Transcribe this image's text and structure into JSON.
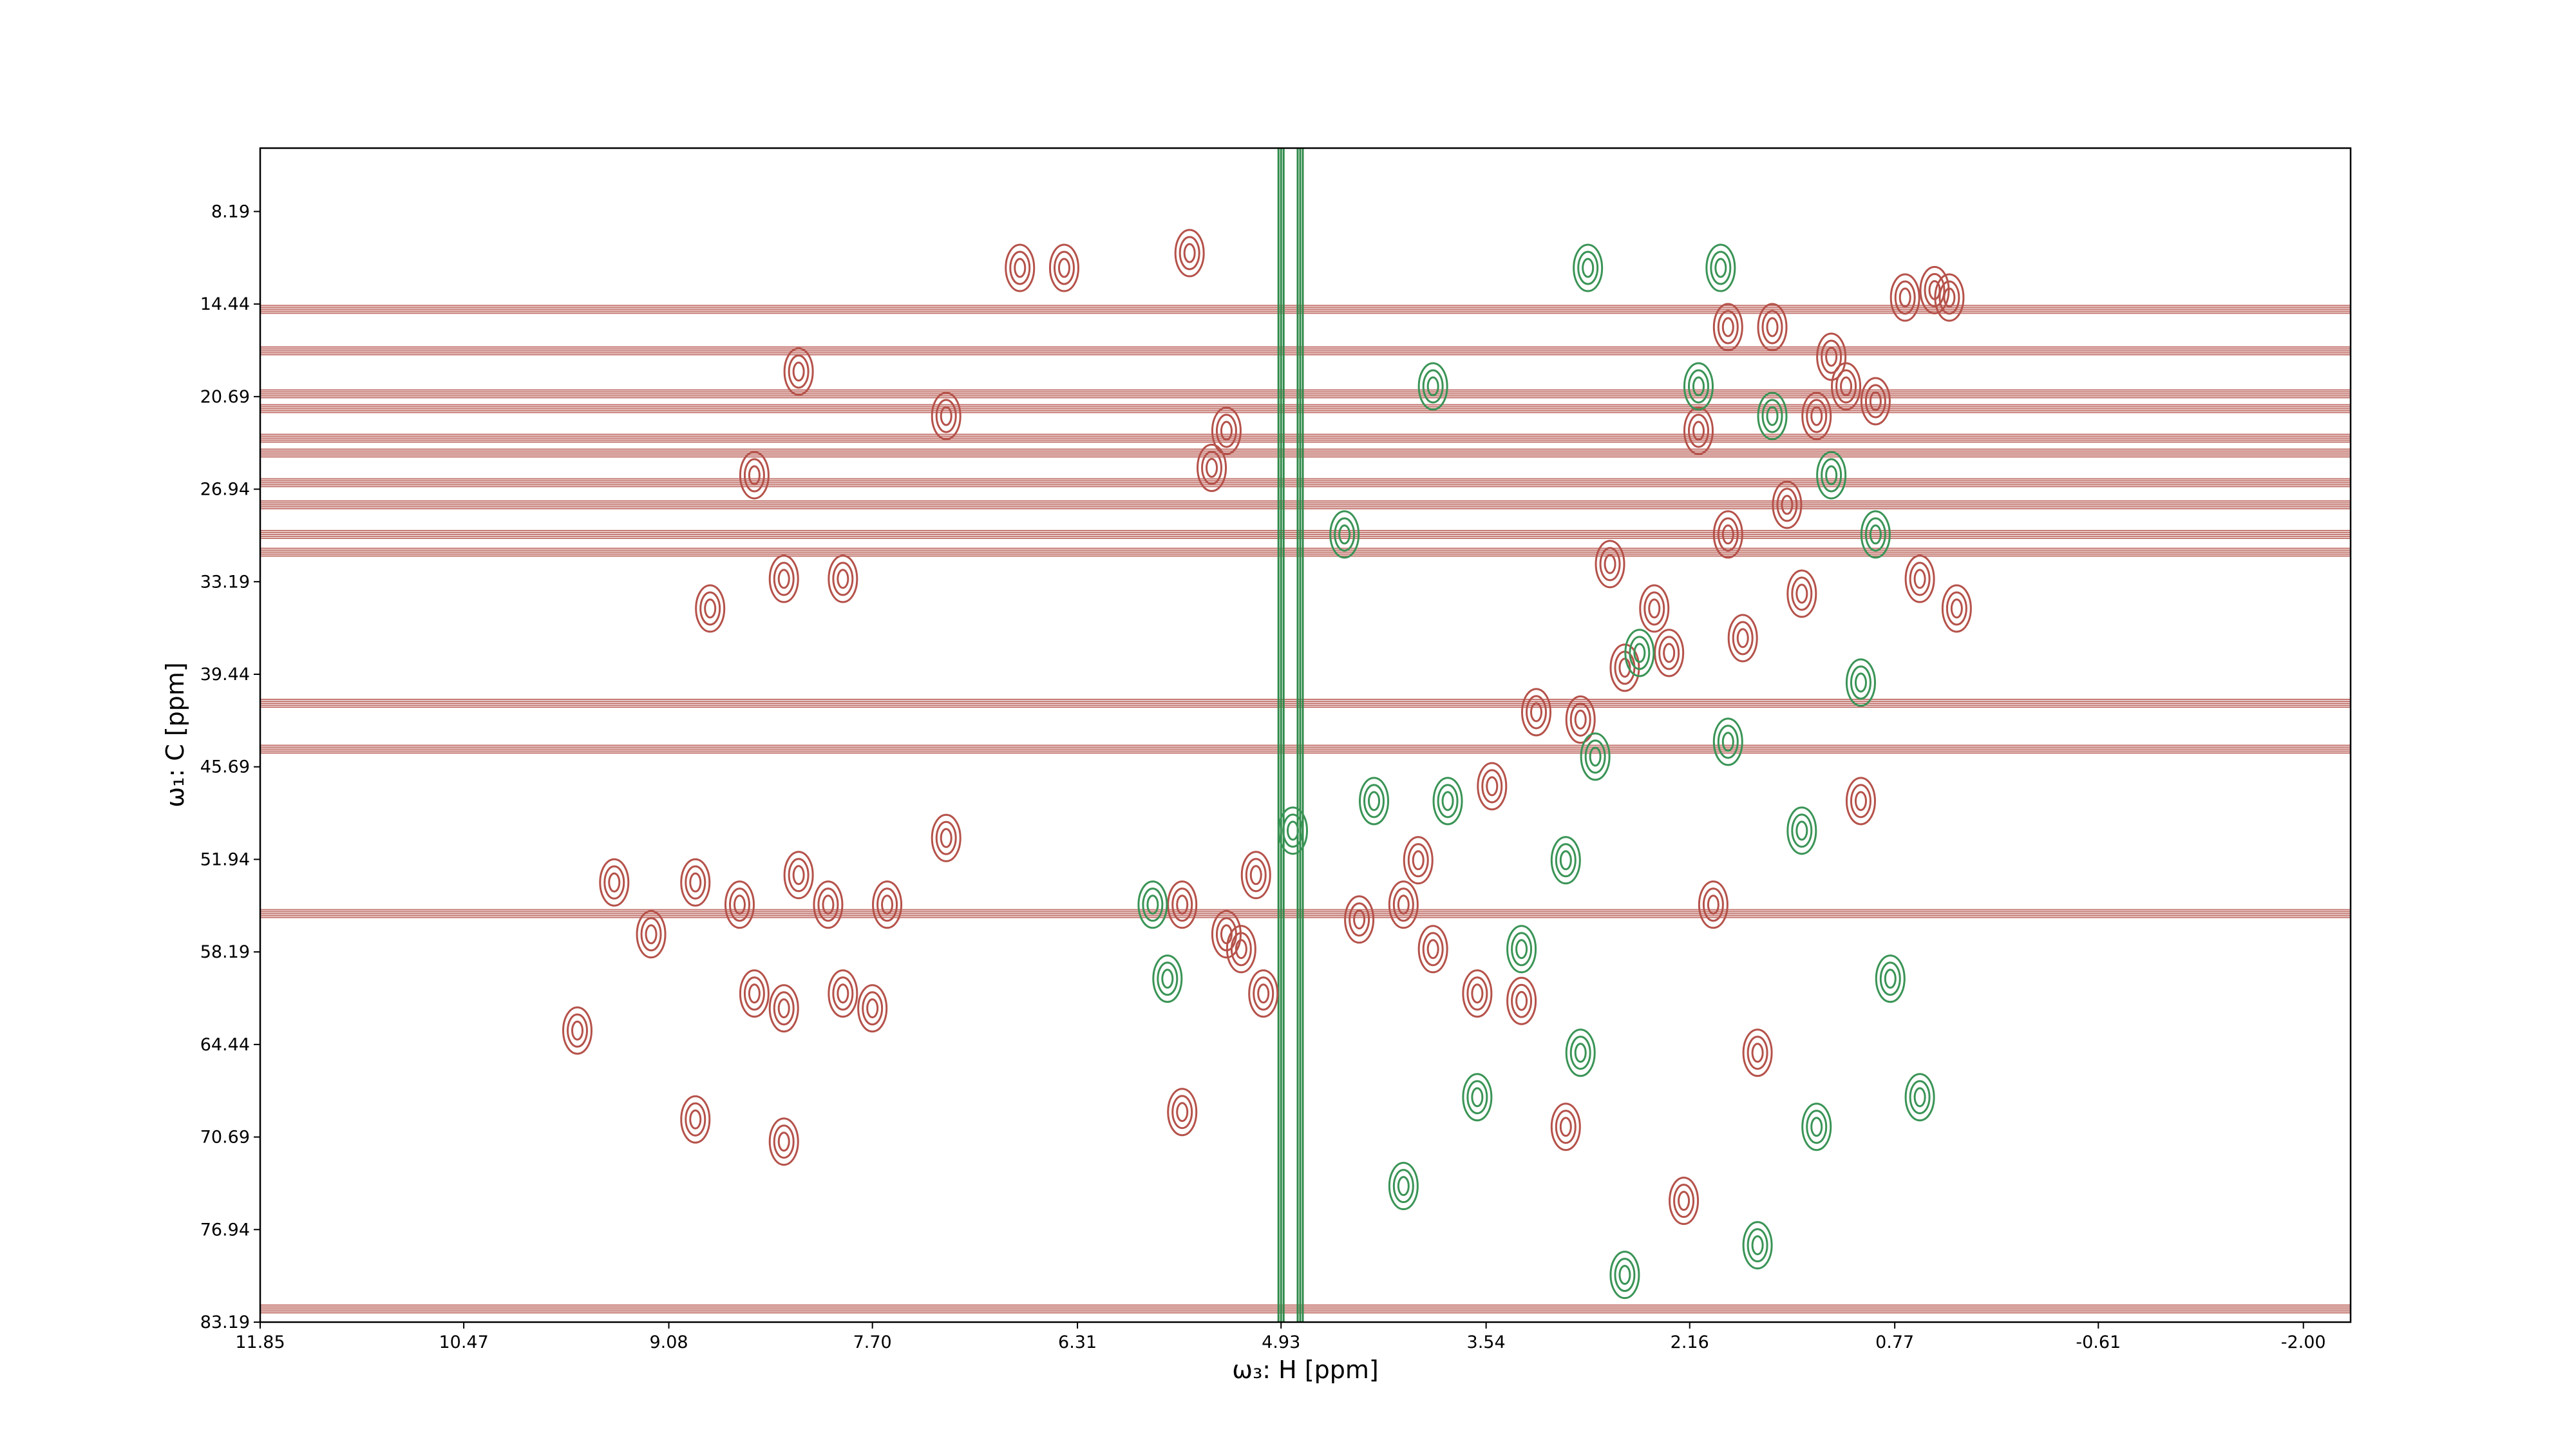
{
  "chart_data": {
    "type": "contour",
    "x_label": "ω₃: H [ppm]",
    "y_label": "ω₁: C [ppm]",
    "xlim": [
      11.85,
      -2.32
    ],
    "ylim": [
      83.19,
      3.91
    ],
    "xticks": [
      11.85,
      10.47,
      9.08,
      7.7,
      6.31,
      4.93,
      3.54,
      2.16,
      0.77,
      -0.61,
      -2.0
    ],
    "yticks": [
      8.19,
      14.44,
      20.69,
      26.94,
      33.19,
      39.44,
      45.69,
      51.94,
      58.19,
      64.44,
      70.69,
      76.94,
      83.19
    ],
    "xtick_labels": [
      "11.85",
      "10.47",
      "9.08",
      "7.70",
      "6.31",
      "4.93",
      "3.54",
      "2.16",
      "0.77",
      "-0.61",
      "-2.00"
    ],
    "ytick_labels": [
      "8.19",
      "14.44",
      "20.69",
      "26.94",
      "33.19",
      "39.44",
      "45.69",
      "51.94",
      "58.19",
      "64.44",
      "70.69",
      "76.94",
      "83.19"
    ],
    "ridges": {
      "color": "#b5524a",
      "y": [
        14.8,
        17.6,
        20.5,
        21.5,
        23.5,
        24.5,
        26.5,
        28,
        30,
        31.2,
        41.4,
        44.5,
        55.6,
        82.3
      ]
    },
    "vertical_ridges": {
      "color": "#2f8a4a",
      "x": [
        4.93,
        4.8
      ]
    },
    "series": [
      {
        "color": "#b5524a",
        "x": [
          9.45,
          9.2,
          8.9,
          8.6,
          8.5,
          8.3,
          8.2,
          8.0,
          7.9,
          7.7,
          7.6,
          9.7,
          8.9,
          8.3,
          7.2,
          8.8,
          8.3,
          7.9,
          8.5,
          8.2,
          7.2,
          6.7,
          6.4,
          5.55,
          5.3,
          5.4,
          5.6,
          5.3,
          5.1,
          5.2,
          5.05,
          5.6,
          4.4,
          4.1,
          3.9,
          3.6,
          3.3,
          4.0,
          3.5,
          3.2,
          2.9,
          2.6,
          2.3,
          1.8,
          2.4,
          1.9,
          1.5,
          1.3,
          1.1,
          0.9,
          0.7,
          0.5,
          1.9,
          1.6,
          1.2,
          2.1,
          2.7,
          1.4,
          0.4,
          1.7,
          2.0,
          1.0,
          3.0,
          2.2,
          0.6,
          0.35
        ],
        "y": [
          53.5,
          57,
          53.5,
          55,
          61,
          62,
          53,
          55,
          61,
          62,
          55,
          63.5,
          69.5,
          71,
          50.5,
          35,
          33,
          33,
          26,
          19,
          22,
          12,
          12,
          11,
          23,
          25.5,
          55,
          57,
          53,
          58,
          61,
          69,
          56,
          55,
          58,
          61,
          61.5,
          52,
          47,
          42,
          42.5,
          39,
          38,
          37,
          35,
          30,
          28,
          22,
          20,
          21,
          14,
          13.5,
          16,
          16,
          18,
          23,
          32,
          34,
          14,
          65,
          55,
          48,
          70,
          75,
          33,
          35
        ]
      },
      {
        "color": "#3a9456",
        "x": [
          4.85,
          5.8,
          5.7,
          4.3,
          3.8,
          3.3,
          3.6,
          4.1,
          3.0,
          2.8,
          2.5,
          2.1,
          1.6,
          1.2,
          0.9,
          1.9,
          1.4,
          0.8,
          2.9,
          1.3,
          2.6,
          1.7,
          4.5,
          3.9,
          2.85,
          1.95,
          1.0,
          0.6
        ],
        "y": [
          50,
          55,
          60,
          48,
          48,
          58,
          68,
          74,
          52,
          45,
          38,
          20,
          22,
          26,
          30,
          44,
          50,
          60,
          65,
          70,
          80,
          78,
          30,
          20,
          12,
          12,
          40,
          68
        ]
      }
    ]
  }
}
